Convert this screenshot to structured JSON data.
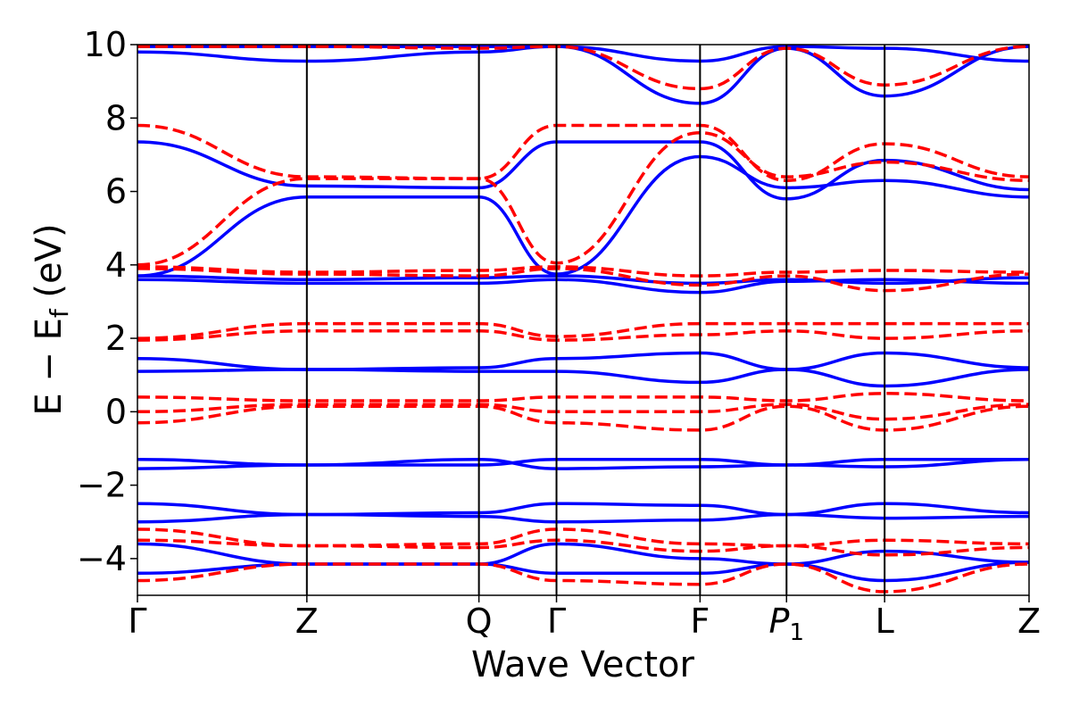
{
  "chart_data": {
    "type": "line",
    "xlabel": "Wave Vector",
    "ylabel": "E − E",
    "ylabel_sub": "f",
    "ylabel_unit": " (eV)",
    "ylim": [
      -5,
      10
    ],
    "yticks": [
      {
        "value": 10,
        "label": "10"
      },
      {
        "value": 8,
        "label": "8"
      },
      {
        "value": 6,
        "label": "6"
      },
      {
        "value": 4,
        "label": "4"
      },
      {
        "value": 2,
        "label": "2"
      },
      {
        "value": 0,
        "label": "0"
      },
      {
        "value": -2,
        "label": "−2"
      },
      {
        "value": -4,
        "label": "−4"
      }
    ],
    "high_symmetry_points": [
      {
        "label": "Γ",
        "sub": ""
      },
      {
        "label": "Z",
        "sub": ""
      },
      {
        "label": "Q",
        "sub": ""
      },
      {
        "label": "Γ",
        "sub": ""
      },
      {
        "label": "F",
        "sub": ""
      },
      {
        "label": "P",
        "sub": "1",
        "italic": true
      },
      {
        "label": "L",
        "sub": ""
      },
      {
        "label": "Z",
        "sub": ""
      }
    ],
    "x": [
      0,
      0.19,
      0.383,
      0.47,
      0.631,
      0.728,
      0.838,
      1.0
    ],
    "series": [
      {
        "style": "solid",
        "color": "#0000ff",
        "values": [
          3.7,
          5.85,
          5.85,
          3.75,
          6.95,
          6.1,
          6.3,
          5.85
        ]
      },
      {
        "style": "solid",
        "color": "#0000ff",
        "values": [
          7.35,
          6.15,
          6.1,
          7.35,
          7.35,
          5.8,
          6.85,
          6.05
        ]
      },
      {
        "style": "solid",
        "color": "#0000ff",
        "values": [
          9.8,
          9.55,
          9.8,
          9.95,
          9.55,
          9.95,
          9.9,
          9.55
        ]
      },
      {
        "style": "solid",
        "color": "#0000ff",
        "values": [
          9.95,
          9.95,
          9.95,
          9.95,
          8.4,
          9.9,
          8.6,
          9.95
        ]
      },
      {
        "style": "solid",
        "color": "#0000ff",
        "values": [
          3.6,
          3.5,
          3.5,
          3.6,
          3.25,
          3.55,
          3.6,
          3.5
        ]
      },
      {
        "style": "solid",
        "color": "#0000ff",
        "values": [
          3.7,
          3.6,
          3.65,
          3.7,
          3.5,
          3.6,
          3.5,
          3.65
        ]
      },
      {
        "style": "solid",
        "color": "#0000ff",
        "values": [
          1.45,
          1.15,
          1.2,
          1.45,
          1.6,
          1.15,
          1.6,
          1.2
        ]
      },
      {
        "style": "solid",
        "color": "#0000ff",
        "values": [
          1.1,
          1.15,
          1.1,
          1.1,
          0.8,
          1.15,
          0.7,
          1.15
        ]
      },
      {
        "style": "solid",
        "color": "#0000ff",
        "values": [
          -1.3,
          -1.45,
          -1.45,
          -1.3,
          -1.3,
          -1.45,
          -1.3,
          -1.3
        ]
      },
      {
        "style": "solid",
        "color": "#0000ff",
        "values": [
          -1.55,
          -1.45,
          -1.3,
          -1.55,
          -1.5,
          -1.45,
          -1.5,
          -1.3
        ]
      },
      {
        "style": "solid",
        "color": "#0000ff",
        "values": [
          -2.5,
          -2.8,
          -2.75,
          -2.5,
          -2.55,
          -2.8,
          -2.5,
          -2.75
        ]
      },
      {
        "style": "solid",
        "color": "#0000ff",
        "values": [
          -3.0,
          -2.8,
          -2.85,
          -3.0,
          -2.95,
          -2.8,
          -2.9,
          -2.85
        ]
      },
      {
        "style": "solid",
        "color": "#0000ff",
        "values": [
          -3.6,
          -4.15,
          -4.15,
          -3.6,
          -4.0,
          -4.15,
          -3.8,
          -4.1
        ]
      },
      {
        "style": "solid",
        "color": "#0000ff",
        "values": [
          -4.4,
          -4.15,
          -4.15,
          -4.4,
          -4.4,
          -4.15,
          -4.6,
          -4.1
        ]
      },
      {
        "style": "dashed",
        "color": "#ff0000",
        "values": [
          4.0,
          6.35,
          6.35,
          4.05,
          7.6,
          6.4,
          6.8,
          6.3
        ]
      },
      {
        "style": "dashed",
        "color": "#ff0000",
        "values": [
          7.8,
          6.4,
          6.35,
          7.8,
          7.8,
          6.3,
          7.3,
          6.4
        ]
      },
      {
        "style": "dashed",
        "color": "#ff0000",
        "values": [
          9.95,
          9.95,
          9.9,
          9.95,
          8.8,
          9.9,
          8.9,
          9.95
        ]
      },
      {
        "style": "dashed",
        "color": "#ff0000",
        "values": [
          3.95,
          3.8,
          3.85,
          3.95,
          3.7,
          3.8,
          3.85,
          3.8
        ]
      },
      {
        "style": "dashed",
        "color": "#ff0000",
        "values": [
          3.9,
          3.75,
          3.7,
          3.9,
          3.45,
          3.7,
          3.3,
          3.75
        ]
      },
      {
        "style": "dashed",
        "color": "#ff0000",
        "values": [
          2.0,
          2.4,
          2.4,
          2.05,
          2.4,
          2.4,
          2.4,
          2.4
        ]
      },
      {
        "style": "dashed",
        "color": "#ff0000",
        "values": [
          1.95,
          2.2,
          2.2,
          1.95,
          2.1,
          2.2,
          2.0,
          2.2
        ]
      },
      {
        "style": "dashed",
        "color": "#ff0000",
        "values": [
          0.4,
          0.3,
          0.3,
          0.4,
          0.4,
          0.3,
          0.5,
          0.3
        ]
      },
      {
        "style": "dashed",
        "color": "#ff0000",
        "values": [
          0.0,
          0.2,
          0.2,
          0.0,
          0.0,
          0.2,
          -0.2,
          0.2
        ]
      },
      {
        "style": "dashed",
        "color": "#ff0000",
        "values": [
          -0.3,
          0.15,
          0.15,
          -0.3,
          -0.5,
          0.15,
          -0.5,
          0.15
        ]
      },
      {
        "style": "dashed",
        "color": "#ff0000",
        "values": [
          -3.2,
          -3.65,
          -3.6,
          -3.2,
          -3.6,
          -3.65,
          -3.5,
          -3.6
        ]
      },
      {
        "style": "dashed",
        "color": "#ff0000",
        "values": [
          -3.5,
          -3.65,
          -3.7,
          -3.5,
          -3.8,
          -3.65,
          -3.9,
          -3.7
        ]
      },
      {
        "style": "dashed",
        "color": "#ff0000",
        "values": [
          -4.6,
          -4.15,
          -4.15,
          -4.6,
          -4.7,
          -4.15,
          -4.9,
          -4.15
        ]
      }
    ]
  }
}
